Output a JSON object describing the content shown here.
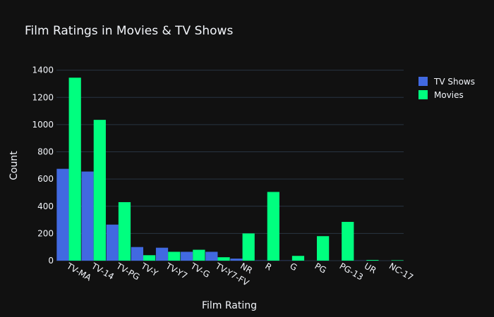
{
  "chart_data": {
    "type": "bar",
    "title": "Film Ratings in Movies & TV Shows",
    "xlabel": "Film Rating",
    "ylabel": "Count",
    "ylim": [
      0,
      1450
    ],
    "yticks": [
      0,
      200,
      400,
      600,
      800,
      1000,
      1200,
      1400
    ],
    "grid": true,
    "legend_position": "top-right",
    "categories": [
      "TV-MA",
      "TV-14",
      "TV-PG",
      "TV-Y",
      "TV-Y7",
      "TV-G",
      "TV-Y7-FV",
      "NR",
      "R",
      "G",
      "PG",
      "PG-13",
      "UR",
      "NC-17"
    ],
    "series": [
      {
        "name": "TV Shows",
        "color": "#4169e1",
        "values": [
          675,
          655,
          265,
          100,
          95,
          65,
          65,
          15,
          2,
          1,
          0,
          0,
          1,
          0
        ]
      },
      {
        "name": "Movies",
        "color": "#00ff7f",
        "values": [
          1345,
          1035,
          430,
          40,
          65,
          80,
          25,
          200,
          505,
          35,
          180,
          285,
          5,
          3
        ]
      }
    ]
  },
  "colors": {
    "background": "#111111",
    "grid": "#283442",
    "text": "#f2f5fa"
  }
}
